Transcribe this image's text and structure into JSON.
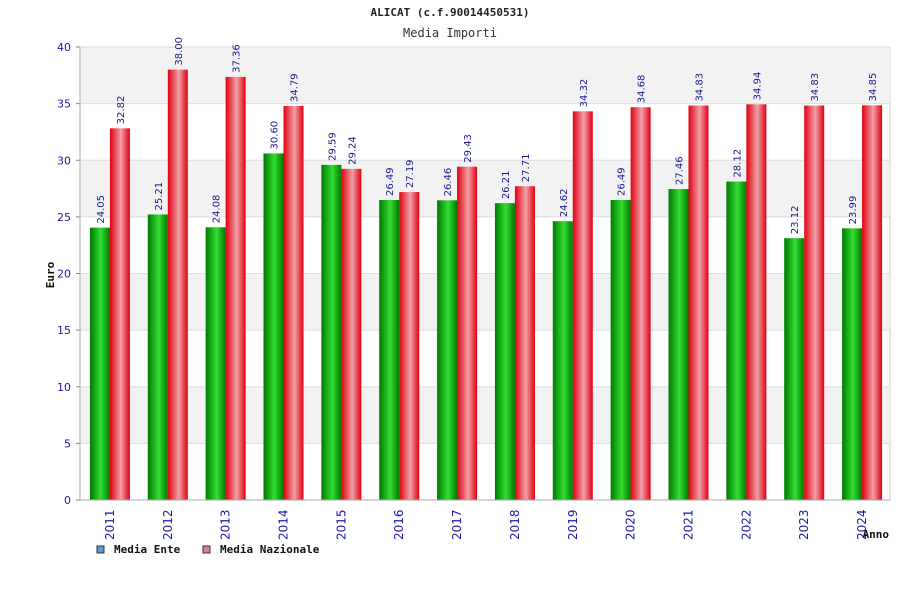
{
  "chart_data": {
    "type": "bar",
    "title": "ALICAT (c.f.90014450531)",
    "subtitle": "Media Importi",
    "ylabel": "Euro",
    "xlabel": "Anno",
    "ylim": [
      0,
      40
    ],
    "yticks": [
      0,
      5,
      10,
      15,
      20,
      25,
      30,
      35,
      40
    ],
    "categories": [
      "2011",
      "2012",
      "2013",
      "2014",
      "2015",
      "2016",
      "2017",
      "2018",
      "2019",
      "2020",
      "2021",
      "2022",
      "2023",
      "2024"
    ],
    "series": [
      {
        "name": "Media Ente",
        "legend_color": "#5b9bd5",
        "color_dark": "#007a00",
        "color_light": "#33dd33",
        "values": [
          24.05,
          25.21,
          24.08,
          30.6,
          29.59,
          26.49,
          26.46,
          26.21,
          24.62,
          26.49,
          27.46,
          28.12,
          23.12,
          23.99
        ],
        "labels": [
          "24.05",
          "25.21",
          "24.08",
          "30.60",
          "29.59",
          "26.49",
          "26.46",
          "26.21",
          "24.62",
          "26.49",
          "27.46",
          "28.12",
          "23.12",
          "23.99"
        ]
      },
      {
        "name": "Media Nazionale",
        "legend_color": "#e07ab0",
        "color_dark": "#e00010",
        "color_light": "#f0a0a8",
        "values": [
          32.82,
          38.0,
          37.36,
          34.79,
          29.24,
          27.19,
          29.43,
          27.71,
          34.32,
          34.68,
          34.83,
          34.94,
          34.83,
          34.85
        ],
        "labels": [
          "32.82",
          "38.00",
          "37.36",
          "34.79",
          "29.24",
          "27.19",
          "29.43",
          "27.71",
          "34.32",
          "34.68",
          "34.83",
          "34.94",
          "34.83",
          "34.85"
        ]
      }
    ],
    "legend_position": "bottom-left",
    "grid": true
  }
}
